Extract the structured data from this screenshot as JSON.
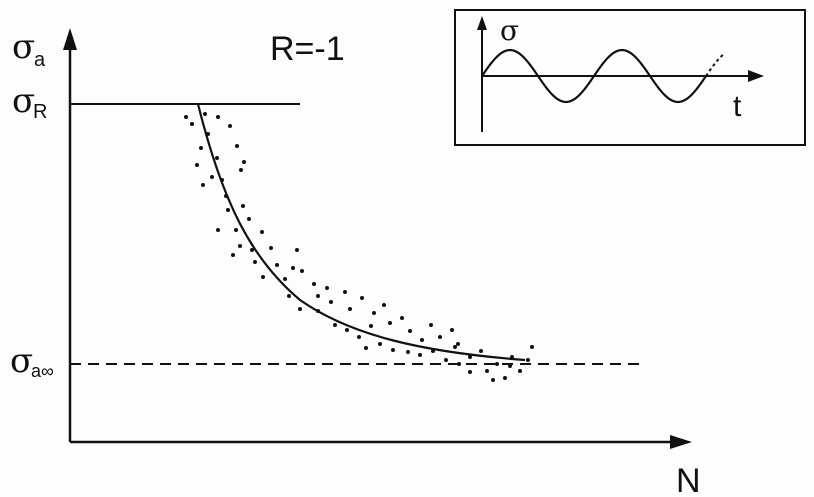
{
  "diagram": {
    "y_axis_label": "σ",
    "y_axis_label_sub": "a",
    "x_axis_label": "N",
    "stress_ratio": "R=-1",
    "upper_level_label": "σ",
    "upper_level_sub": "R",
    "endurance_label": "σ",
    "endurance_sub": "a∞"
  },
  "inset": {
    "y_label": "σ",
    "x_label": "t"
  },
  "colors": {
    "ink": "#111111",
    "background": "#fdfdfd"
  }
}
